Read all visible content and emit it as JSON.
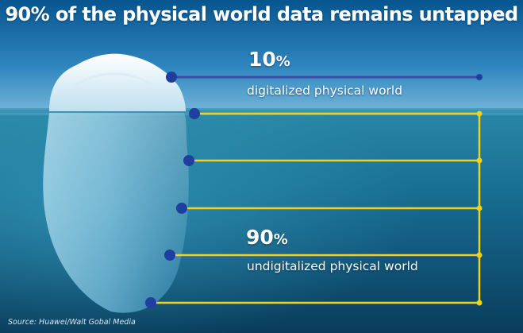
{
  "headline": "90% of the physical world data remains untapped",
  "top_block": {
    "value": "10",
    "symbol": "%",
    "label": "digitalized physical world"
  },
  "bottom_block": {
    "value": "90",
    "symbol": "%",
    "label": "undigitalized physical world"
  },
  "source": "Source: Huawei/Walt Gobal Media",
  "colors": {
    "sky_top": "#0a5d96",
    "sky_bottom": "#5aa7cf",
    "sea_top": "#1f7a9a",
    "sea_bottom": "#0b4060",
    "dot_blue": "#1f3f9f",
    "line_blue": "#3a4fa8",
    "line_yellow": "#f1d21a",
    "text": "#ffffff"
  }
}
